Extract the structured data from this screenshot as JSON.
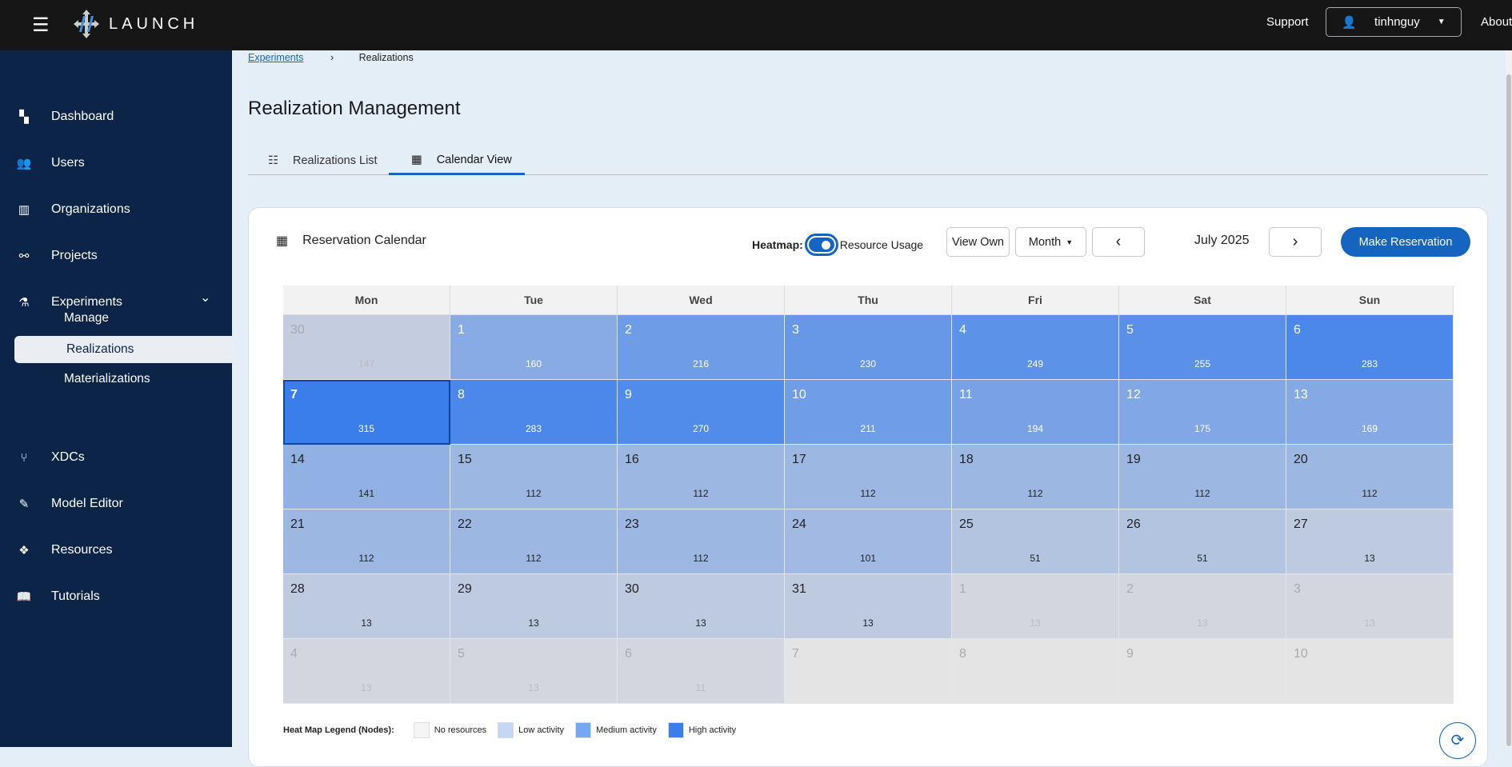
{
  "header": {
    "brand": "LAUNCH",
    "support": "Support",
    "user": "tinhnguy",
    "about": "About"
  },
  "sidebar": {
    "items": [
      {
        "label": "Dashboard",
        "icon": "dashboard-icon",
        "glyph": "▚"
      },
      {
        "label": "Users",
        "icon": "users-icon",
        "glyph": "👥"
      },
      {
        "label": "Organizations",
        "icon": "building-icon",
        "glyph": "▥"
      },
      {
        "label": "Projects",
        "icon": "project-diagram-icon",
        "glyph": "⚯"
      },
      {
        "label": "Experiments",
        "icon": "flask-icon",
        "glyph": "⚗"
      },
      {
        "label": "XDCs",
        "icon": "code-branch-icon",
        "glyph": "⑂"
      },
      {
        "label": "Model Editor",
        "icon": "edit-icon",
        "glyph": "✎"
      },
      {
        "label": "Resources",
        "icon": "cubes-icon",
        "glyph": "❖"
      },
      {
        "label": "Tutorials",
        "icon": "book-icon",
        "glyph": "📖"
      }
    ],
    "experiments_sub": [
      "Manage",
      "Realizations",
      "Materializations"
    ]
  },
  "breadcrumb": {
    "parent": "Experiments",
    "current": "Realizations"
  },
  "page_title": "Realization Management",
  "tabs": [
    {
      "label": "Realizations List"
    },
    {
      "label": "Calendar View"
    }
  ],
  "calendar": {
    "title": "Reservation Calendar",
    "heatmap_label": "Heatmap:",
    "heatmap_on": true,
    "mode_label": "Resource Usage",
    "view_own": "View Own",
    "view_mode": "Month",
    "month": "July 2025",
    "make_reservation": "Make Reservation",
    "weekdays": [
      "Mon",
      "Tue",
      "Wed",
      "Thu",
      "Fri",
      "Sat",
      "Sun"
    ],
    "today": "7",
    "days": [
      {
        "d": "30",
        "n": 147,
        "out": true
      },
      {
        "d": "1",
        "n": 160
      },
      {
        "d": "2",
        "n": 216
      },
      {
        "d": "3",
        "n": 230
      },
      {
        "d": "4",
        "n": 249
      },
      {
        "d": "5",
        "n": 255
      },
      {
        "d": "6",
        "n": 283
      },
      {
        "d": "7",
        "n": 315,
        "today": true
      },
      {
        "d": "8",
        "n": 283
      },
      {
        "d": "9",
        "n": 270
      },
      {
        "d": "10",
        "n": 211
      },
      {
        "d": "11",
        "n": 194
      },
      {
        "d": "12",
        "n": 175
      },
      {
        "d": "13",
        "n": 169
      },
      {
        "d": "14",
        "n": 141
      },
      {
        "d": "15",
        "n": 112
      },
      {
        "d": "16",
        "n": 112
      },
      {
        "d": "17",
        "n": 112
      },
      {
        "d": "18",
        "n": 112
      },
      {
        "d": "19",
        "n": 112
      },
      {
        "d": "20",
        "n": 112
      },
      {
        "d": "21",
        "n": 112
      },
      {
        "d": "22",
        "n": 112
      },
      {
        "d": "23",
        "n": 112
      },
      {
        "d": "24",
        "n": 101
      },
      {
        "d": "25",
        "n": 51
      },
      {
        "d": "26",
        "n": 51
      },
      {
        "d": "27",
        "n": 13
      },
      {
        "d": "28",
        "n": 13
      },
      {
        "d": "29",
        "n": 13
      },
      {
        "d": "30",
        "n": 13
      },
      {
        "d": "31",
        "n": 13
      },
      {
        "d": "1",
        "n": 13,
        "out": true
      },
      {
        "d": "2",
        "n": 13,
        "out": true
      },
      {
        "d": "3",
        "n": 13,
        "out": true
      },
      {
        "d": "4",
        "n": 13,
        "out": true
      },
      {
        "d": "5",
        "n": 13,
        "out": true
      },
      {
        "d": "6",
        "n": 11,
        "out": true
      },
      {
        "d": "7",
        "out": true
      },
      {
        "d": "8",
        "out": true
      },
      {
        "d": "9",
        "out": true
      },
      {
        "d": "10",
        "out": true
      }
    ],
    "legend": {
      "title": "Heat Map Legend (Nodes):",
      "items": [
        {
          "label": "No resources",
          "color": "#f5f5f5"
        },
        {
          "label": "Low activity",
          "color": "#c3d7f7"
        },
        {
          "label": "Medium activity",
          "color": "#77a6f2"
        },
        {
          "label": "High activity",
          "color": "#3b7eea"
        }
      ]
    }
  }
}
